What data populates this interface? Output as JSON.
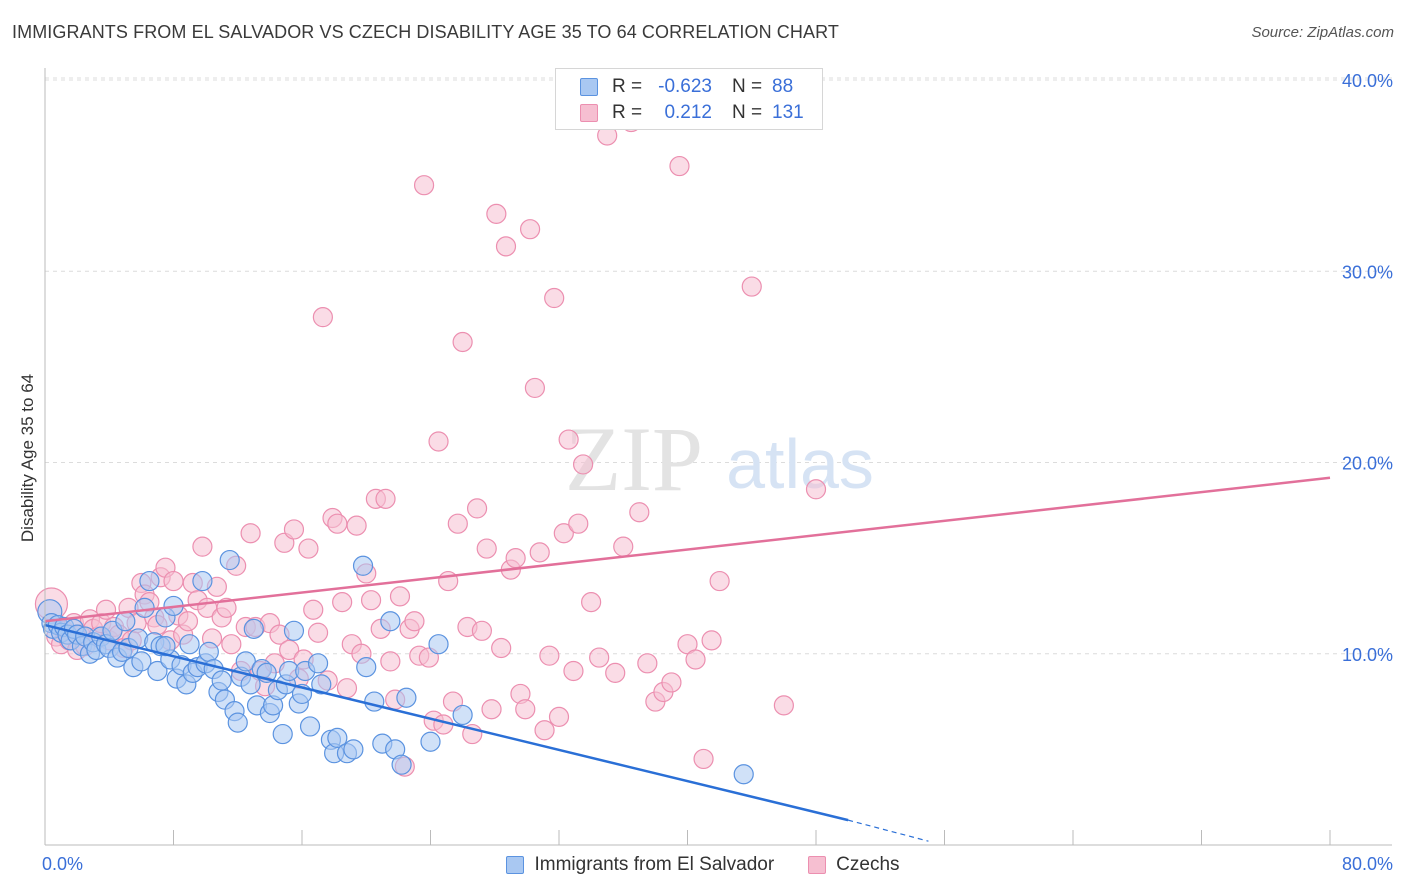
{
  "header": {
    "title": "IMMIGRANTS FROM EL SALVADOR VS CZECH DISABILITY AGE 35 TO 64 CORRELATION CHART",
    "source": "Source: ZipAtlas.com"
  },
  "watermark": {
    "zip": "ZIP",
    "atlas": "atlas"
  },
  "legend": {
    "rows": [
      {
        "r_label": "R =",
        "r_value": "-0.623",
        "n_label": "N =",
        "n_value": "88",
        "color": "#6fa8f0"
      },
      {
        "r_label": "R =",
        "r_value": "0.212",
        "n_label": "N =",
        "n_value": "131",
        "color": "#f29bb8"
      }
    ]
  },
  "colors": {
    "blue_fill": "#a9c8f2",
    "blue_stroke": "#5b93e0",
    "blue_line": "#2a6fd6",
    "pink_fill": "#f6bfd1",
    "pink_stroke": "#ec8fb0",
    "pink_line": "#e2709a",
    "tick_label": "#3a6fd8",
    "grid": "#dcdcdc"
  },
  "chart_data": {
    "type": "scatter",
    "title": "IMMIGRANTS FROM EL SALVADOR VS CZECH DISABILITY AGE 35 TO 64 CORRELATION CHART",
    "xlabel": "",
    "ylabel": "Disability Age 35 to 64",
    "xlim": [
      0,
      80
    ],
    "ylim": [
      0,
      40
    ],
    "x_tick_labels": [
      "0.0%",
      "80.0%"
    ],
    "y_ticks": [
      10,
      20,
      30,
      40
    ],
    "y_tick_labels": [
      "10.0%",
      "20.0%",
      "30.0%",
      "40.0%"
    ],
    "grid": true,
    "legend_position": "bottom",
    "series": [
      {
        "name": "Immigrants from El Salvador",
        "r": -0.623,
        "n": 88,
        "trend": {
          "x": [
            0.0,
            50.0,
            55.0
          ],
          "y": [
            11.5,
            1.3,
            0.2
          ],
          "dashed_from_x": 50.0
        },
        "points": [
          [
            0.3,
            12.2
          ],
          [
            0.4,
            11.6
          ],
          [
            0.5,
            11.3
          ],
          [
            0.8,
            11.5
          ],
          [
            1.0,
            11.1
          ],
          [
            1.2,
            11.4
          ],
          [
            1.4,
            11.0
          ],
          [
            1.6,
            10.7
          ],
          [
            1.8,
            11.3
          ],
          [
            2.0,
            11.0
          ],
          [
            2.3,
            10.4
          ],
          [
            2.5,
            10.9
          ],
          [
            2.8,
            10.0
          ],
          [
            3.0,
            10.6
          ],
          [
            3.2,
            10.2
          ],
          [
            3.5,
            10.9
          ],
          [
            3.8,
            10.5
          ],
          [
            4.0,
            10.3
          ],
          [
            4.2,
            11.2
          ],
          [
            4.5,
            9.8
          ],
          [
            4.8,
            10.1
          ],
          [
            5.0,
            11.7
          ],
          [
            5.2,
            10.3
          ],
          [
            5.5,
            9.3
          ],
          [
            5.8,
            10.8
          ],
          [
            6.0,
            9.6
          ],
          [
            6.2,
            12.4
          ],
          [
            6.5,
            13.8
          ],
          [
            6.8,
            10.6
          ],
          [
            7.0,
            9.1
          ],
          [
            7.2,
            10.4
          ],
          [
            7.5,
            11.9
          ],
          [
            7.8,
            9.7
          ],
          [
            8.0,
            12.5
          ],
          [
            8.2,
            8.7
          ],
          [
            8.5,
            9.4
          ],
          [
            8.8,
            8.4
          ],
          [
            9.0,
            10.5
          ],
          [
            9.2,
            9.0
          ],
          [
            9.5,
            9.3
          ],
          [
            9.8,
            13.8
          ],
          [
            10.0,
            9.5
          ],
          [
            10.2,
            10.1
          ],
          [
            10.5,
            9.2
          ],
          [
            10.8,
            8.0
          ],
          [
            11.0,
            8.6
          ],
          [
            11.2,
            7.6
          ],
          [
            11.5,
            14.9
          ],
          [
            11.8,
            7.0
          ],
          [
            12.0,
            6.4
          ],
          [
            12.2,
            8.8
          ],
          [
            12.5,
            9.6
          ],
          [
            12.8,
            8.4
          ],
          [
            13.0,
            11.3
          ],
          [
            13.2,
            7.3
          ],
          [
            13.5,
            9.2
          ],
          [
            13.8,
            9.0
          ],
          [
            14.0,
            6.9
          ],
          [
            14.2,
            7.3
          ],
          [
            14.5,
            8.1
          ],
          [
            14.8,
            5.8
          ],
          [
            15.0,
            8.4
          ],
          [
            15.2,
            9.1
          ],
          [
            15.5,
            11.2
          ],
          [
            15.8,
            7.4
          ],
          [
            16.0,
            7.9
          ],
          [
            16.2,
            9.1
          ],
          [
            16.5,
            6.2
          ],
          [
            17.0,
            9.5
          ],
          [
            17.2,
            8.4
          ],
          [
            17.8,
            5.5
          ],
          [
            18.0,
            4.8
          ],
          [
            18.2,
            5.6
          ],
          [
            18.8,
            4.8
          ],
          [
            19.2,
            5.0
          ],
          [
            19.8,
            14.6
          ],
          [
            20.0,
            9.3
          ],
          [
            20.5,
            7.5
          ],
          [
            21.0,
            5.3
          ],
          [
            21.5,
            11.7
          ],
          [
            21.8,
            5.0
          ],
          [
            22.2,
            4.2
          ],
          [
            22.5,
            7.7
          ],
          [
            24.0,
            5.4
          ],
          [
            24.5,
            10.5
          ],
          [
            26.0,
            6.8
          ],
          [
            43.5,
            3.7
          ],
          [
            7.5,
            10.4
          ]
        ]
      },
      {
        "name": "Czechs",
        "r": 0.212,
        "n": 131,
        "trend": {
          "x": [
            0.0,
            80.0
          ],
          "y": [
            11.7,
            19.2
          ]
        },
        "points": [
          [
            0.4,
            12.6
          ],
          [
            0.7,
            10.9
          ],
          [
            1.0,
            10.5
          ],
          [
            1.2,
            11.2
          ],
          [
            1.5,
            10.7
          ],
          [
            1.8,
            11.6
          ],
          [
            2.0,
            10.2
          ],
          [
            2.2,
            11.0
          ],
          [
            2.5,
            10.4
          ],
          [
            2.8,
            11.8
          ],
          [
            3.0,
            11.3
          ],
          [
            3.3,
            10.9
          ],
          [
            3.5,
            11.6
          ],
          [
            3.8,
            12.3
          ],
          [
            4.0,
            10.7
          ],
          [
            4.3,
            11.4
          ],
          [
            4.6,
            11.0
          ],
          [
            4.9,
            10.3
          ],
          [
            5.2,
            12.4
          ],
          [
            5.4,
            10.7
          ],
          [
            5.7,
            11.6
          ],
          [
            6.0,
            13.7
          ],
          [
            6.2,
            13.1
          ],
          [
            6.5,
            12.7
          ],
          [
            6.8,
            11.9
          ],
          [
            7.0,
            11.5
          ],
          [
            7.2,
            14.0
          ],
          [
            7.5,
            14.5
          ],
          [
            7.8,
            10.7
          ],
          [
            8.0,
            13.8
          ],
          [
            8.3,
            12.0
          ],
          [
            8.6,
            11.0
          ],
          [
            8.9,
            11.7
          ],
          [
            9.2,
            13.7
          ],
          [
            9.5,
            12.8
          ],
          [
            9.8,
            15.6
          ],
          [
            10.1,
            12.4
          ],
          [
            10.4,
            10.8
          ],
          [
            10.7,
            13.5
          ],
          [
            11.0,
            11.9
          ],
          [
            11.3,
            12.4
          ],
          [
            11.6,
            10.5
          ],
          [
            11.9,
            14.6
          ],
          [
            12.2,
            9.1
          ],
          [
            12.5,
            11.4
          ],
          [
            12.8,
            16.3
          ],
          [
            13.1,
            11.4
          ],
          [
            13.4,
            9.1
          ],
          [
            13.7,
            8.3
          ],
          [
            14.0,
            11.6
          ],
          [
            14.3,
            9.5
          ],
          [
            14.6,
            11.0
          ],
          [
            14.9,
            15.8
          ],
          [
            15.2,
            10.2
          ],
          [
            15.5,
            16.5
          ],
          [
            15.8,
            8.7
          ],
          [
            16.1,
            9.7
          ],
          [
            16.4,
            15.5
          ],
          [
            16.7,
            12.3
          ],
          [
            17.0,
            11.1
          ],
          [
            17.3,
            27.6
          ],
          [
            17.6,
            8.6
          ],
          [
            17.9,
            17.1
          ],
          [
            18.2,
            16.8
          ],
          [
            18.5,
            12.7
          ],
          [
            18.8,
            8.2
          ],
          [
            19.1,
            10.5
          ],
          [
            19.4,
            16.7
          ],
          [
            19.7,
            10.0
          ],
          [
            20.0,
            14.2
          ],
          [
            20.3,
            12.8
          ],
          [
            20.6,
            18.1
          ],
          [
            20.9,
            11.3
          ],
          [
            21.2,
            18.1
          ],
          [
            21.5,
            9.6
          ],
          [
            21.8,
            7.6
          ],
          [
            22.1,
            13.0
          ],
          [
            22.4,
            4.1
          ],
          [
            22.7,
            11.3
          ],
          [
            23.0,
            11.7
          ],
          [
            23.3,
            9.9
          ],
          [
            23.6,
            34.5
          ],
          [
            23.9,
            9.8
          ],
          [
            24.2,
            6.5
          ],
          [
            24.5,
            21.1
          ],
          [
            24.8,
            6.3
          ],
          [
            25.1,
            13.8
          ],
          [
            25.4,
            7.5
          ],
          [
            25.7,
            16.8
          ],
          [
            26.0,
            26.3
          ],
          [
            26.3,
            11.4
          ],
          [
            26.6,
            5.8
          ],
          [
            26.9,
            17.6
          ],
          [
            27.2,
            11.2
          ],
          [
            27.5,
            15.5
          ],
          [
            27.8,
            7.1
          ],
          [
            28.1,
            33.0
          ],
          [
            28.4,
            10.3
          ],
          [
            28.7,
            31.3
          ],
          [
            29.0,
            14.4
          ],
          [
            29.3,
            15.0
          ],
          [
            29.6,
            7.9
          ],
          [
            29.9,
            7.1
          ],
          [
            30.2,
            32.2
          ],
          [
            30.5,
            23.9
          ],
          [
            30.8,
            15.3
          ],
          [
            31.1,
            6.0
          ],
          [
            31.4,
            9.9
          ],
          [
            31.7,
            28.6
          ],
          [
            32.0,
            6.7
          ],
          [
            32.3,
            16.3
          ],
          [
            32.6,
            21.2
          ],
          [
            32.9,
            9.1
          ],
          [
            33.2,
            16.8
          ],
          [
            33.5,
            19.9
          ],
          [
            34.0,
            12.7
          ],
          [
            34.5,
            9.8
          ],
          [
            35.0,
            37.1
          ],
          [
            35.5,
            9.0
          ],
          [
            36.0,
            15.6
          ],
          [
            36.5,
            37.8
          ],
          [
            37.0,
            17.4
          ],
          [
            37.5,
            9.5
          ],
          [
            38.0,
            7.5
          ],
          [
            38.5,
            8.0
          ],
          [
            39.0,
            8.5
          ],
          [
            39.5,
            35.5
          ],
          [
            40.0,
            10.5
          ],
          [
            40.5,
            9.7
          ],
          [
            41.0,
            4.5
          ],
          [
            41.5,
            10.7
          ],
          [
            42.0,
            13.8
          ],
          [
            44.0,
            29.2
          ],
          [
            46.0,
            7.3
          ],
          [
            48.0,
            18.6
          ]
        ]
      }
    ]
  },
  "x_axis": {
    "min_label": "0.0%",
    "max_label": "80.0%"
  },
  "bottom_legend": [
    {
      "label": "Immigrants from El Salvador"
    },
    {
      "label": "Czechs"
    }
  ]
}
